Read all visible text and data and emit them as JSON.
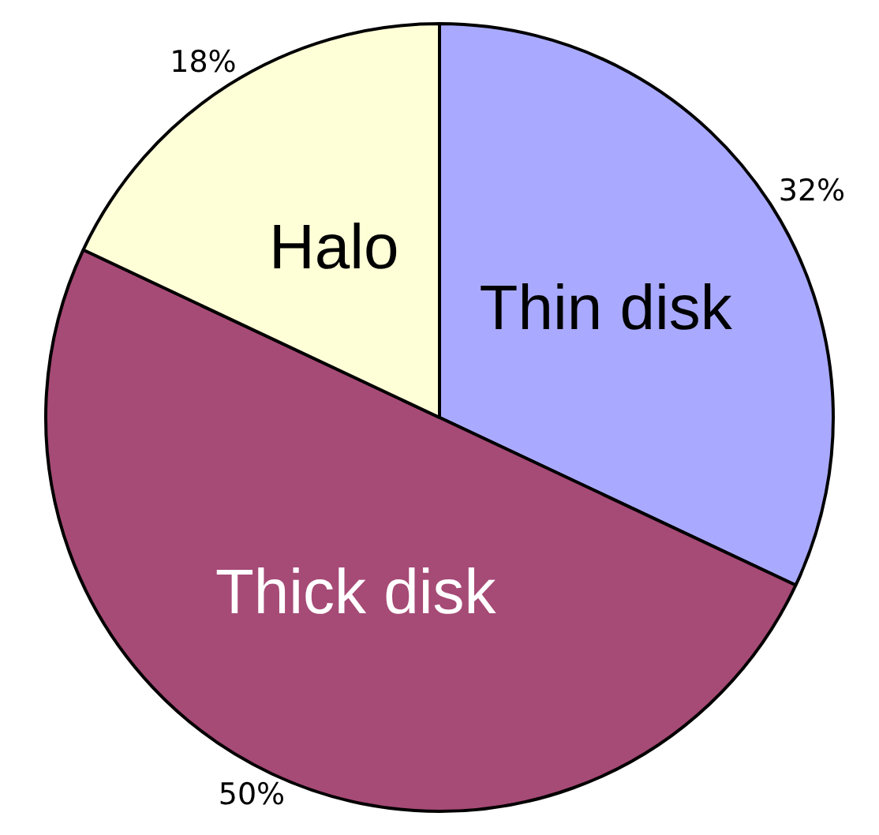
{
  "chart_data": {
    "type": "pie",
    "categories": [
      "Thin disk",
      "Thick disk",
      "Halo"
    ],
    "values": [
      32,
      50,
      18
    ],
    "colors": [
      "#a9aaff",
      "#a64a76",
      "#ffffd7"
    ],
    "value_labels": [
      "32%",
      "50%",
      "18%"
    ]
  }
}
